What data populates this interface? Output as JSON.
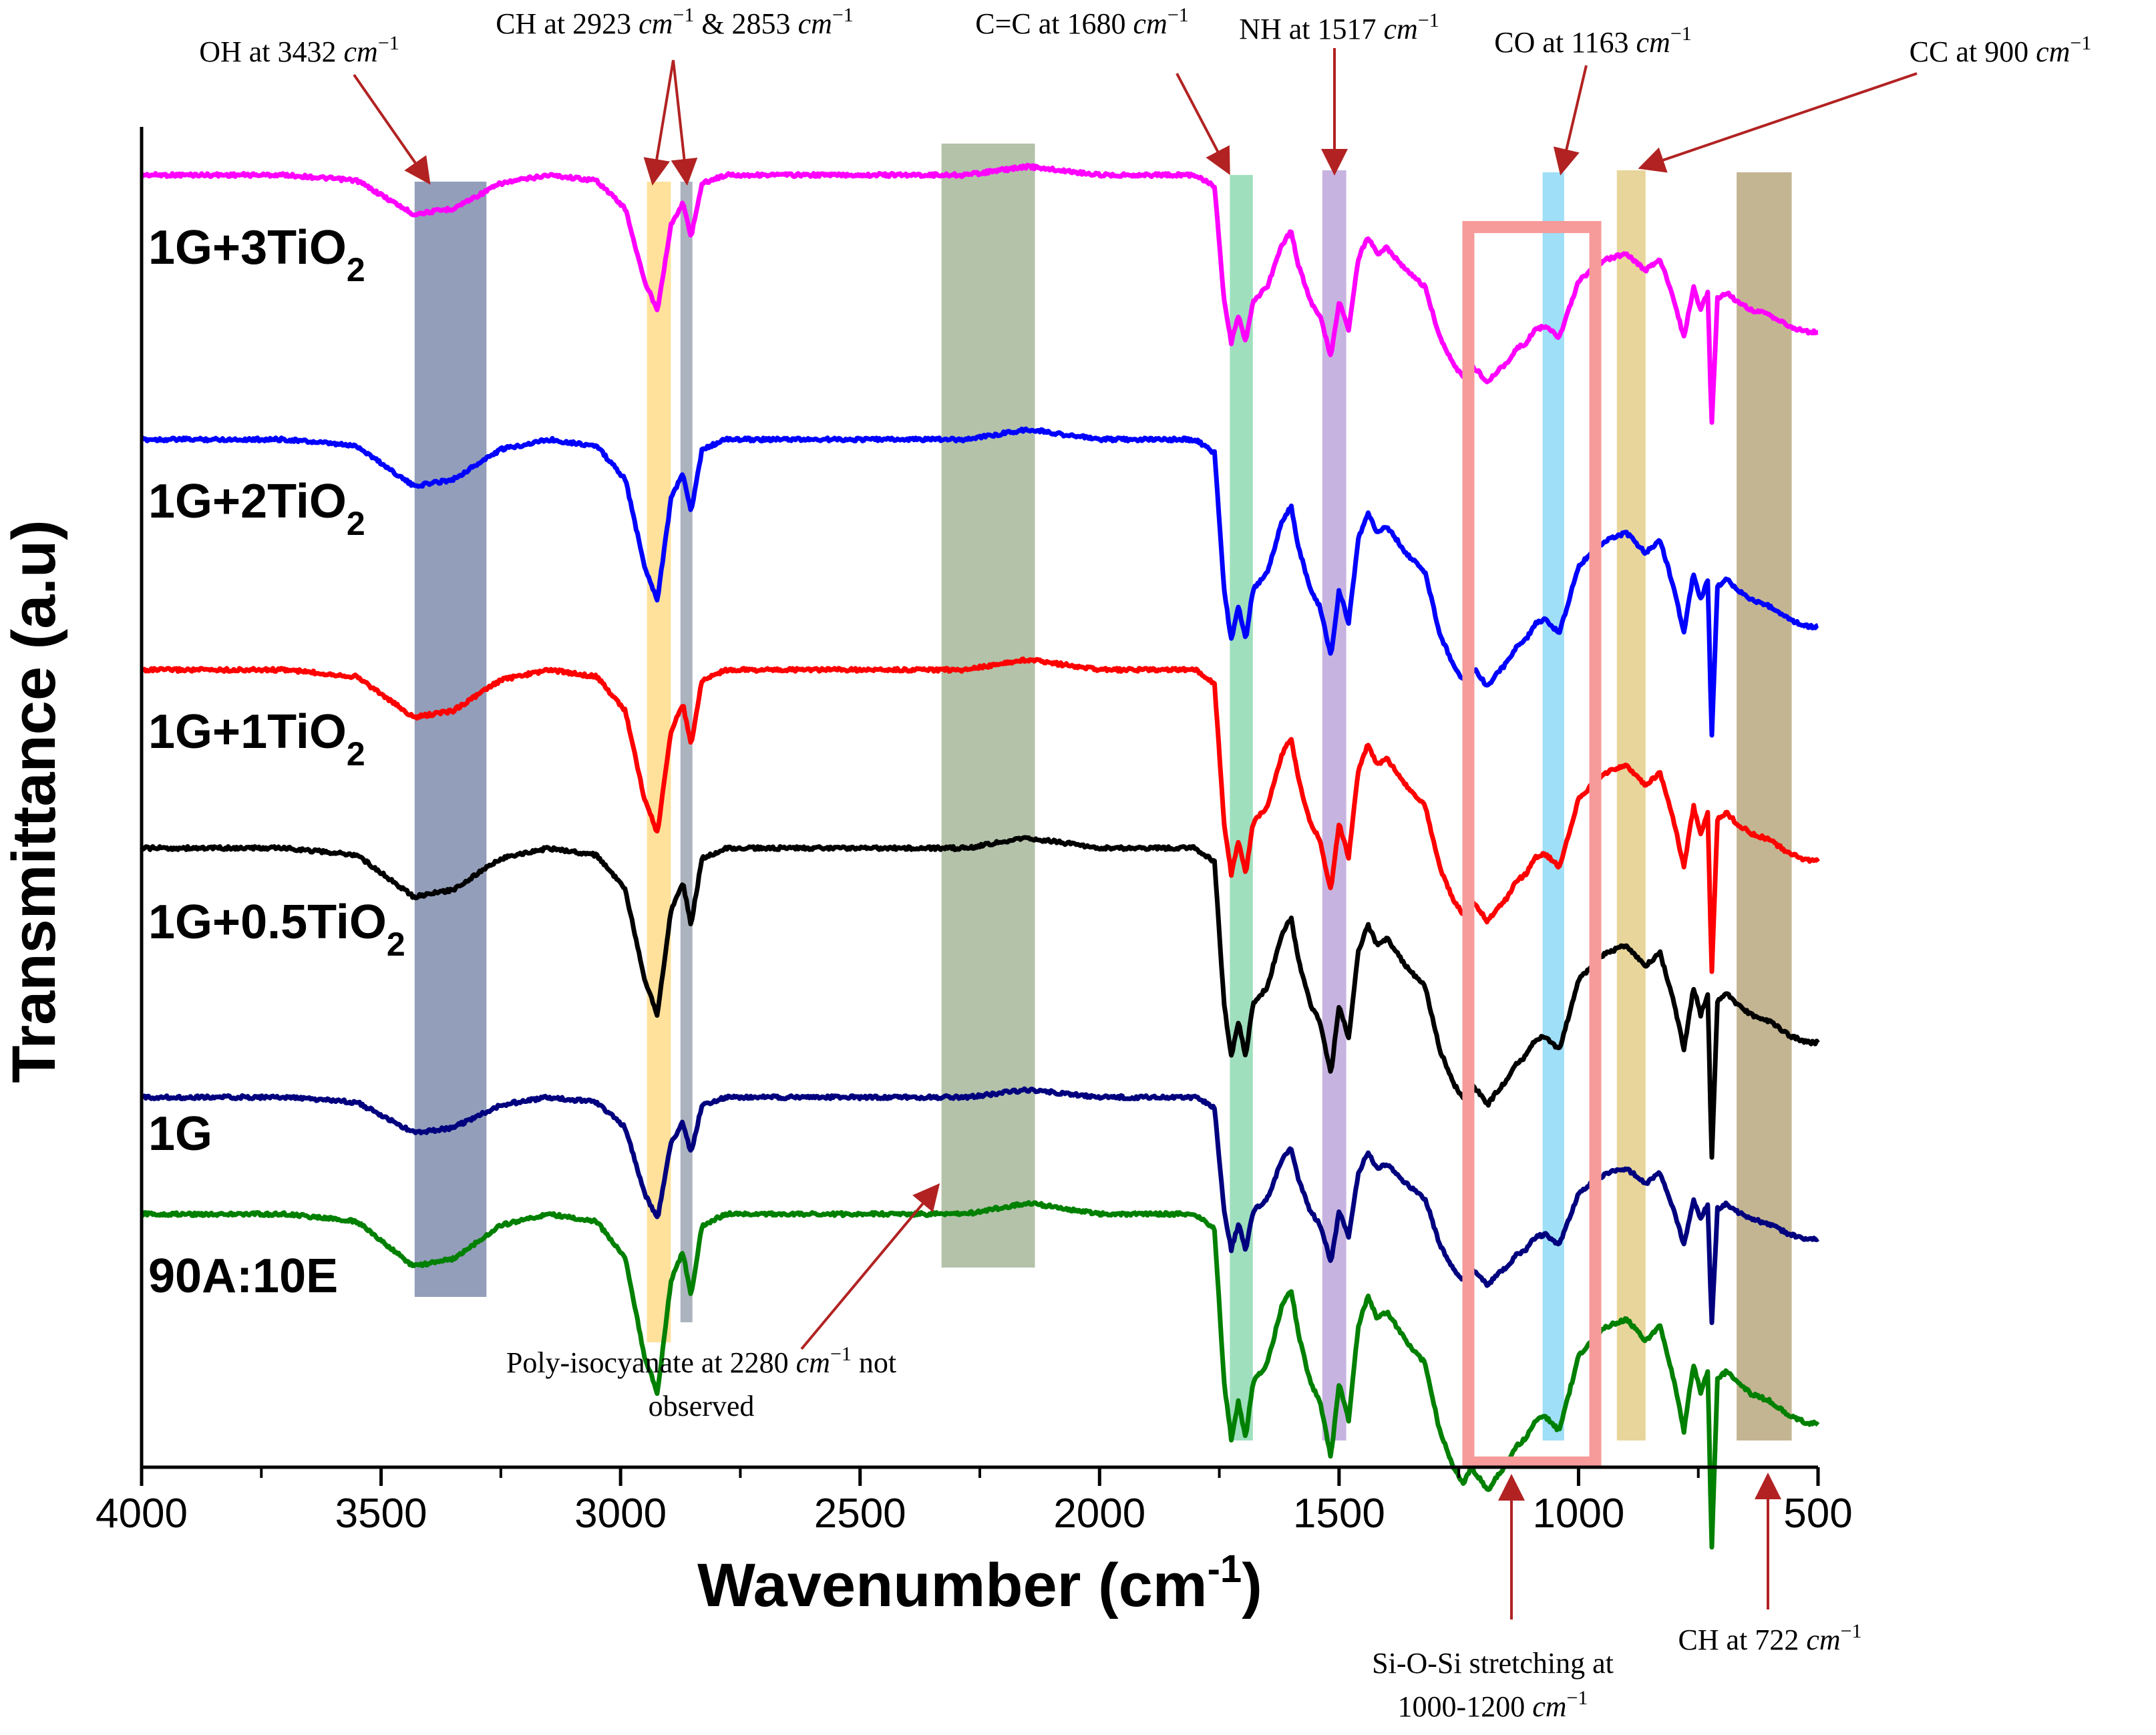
{
  "chart_data": {
    "type": "line",
    "title": "",
    "xlabel_main": "Wavenumber (cm",
    "xlabel_sup": "-1",
    "xlabel_close": ")",
    "ylabel": "Transmittance (a.u)",
    "x_range": [
      4000,
      500
    ],
    "x_ticks": [
      4000,
      3500,
      3000,
      2500,
      2000,
      1500,
      1000,
      500
    ],
    "x_tick_labels": [
      "4000",
      "3500",
      "3000",
      "2500",
      "2000",
      "1500",
      "1000",
      "500"
    ],
    "y_axis_ticks_shown": false,
    "series": [
      {
        "name": "1G+3TiO2",
        "label_main": "1G+3TiO",
        "label_sub": "2",
        "color": "#ff00ff",
        "offset": 5,
        "sample": "3ti"
      },
      {
        "name": "1G+2TiO2",
        "label_main": "1G+2TiO",
        "label_sub": "2",
        "color": "#0000ff",
        "offset": 4,
        "sample": "2ti"
      },
      {
        "name": "1G+1TiO2",
        "label_main": "1G+1TiO",
        "label_sub": "2",
        "color": "#ff0000",
        "offset": 3,
        "sample": "1ti"
      },
      {
        "name": "1G+0.5TiO2",
        "label_main": "1G+0.5TiO",
        "label_sub": "2",
        "color": "#000000",
        "offset": 2,
        "sample": "05ti"
      },
      {
        "name": "1G",
        "label_main": "1G",
        "label_sub": "",
        "color": "#00007f",
        "offset": 1,
        "sample": "1g"
      },
      {
        "name": "90A:10E",
        "label_main": "90A:10E",
        "label_sub": "",
        "color": "#008000",
        "offset": 0,
        "sample": "ae"
      }
    ],
    "spectrum_shape": {
      "points_wavenumber": [
        4000,
        3700,
        3550,
        3432,
        3350,
        3250,
        3150,
        3050,
        2990,
        2950,
        2923,
        2895,
        2870,
        2853,
        2830,
        2780,
        2500,
        2280,
        2150,
        2000,
        1900,
        1800,
        1760,
        1740,
        1725,
        1710,
        1695,
        1680,
        1650,
        1620,
        1600,
        1585,
        1560,
        1540,
        1517,
        1500,
        1480,
        1460,
        1440,
        1420,
        1400,
        1360,
        1320,
        1290,
        1260,
        1240,
        1225,
        1210,
        1190,
        1170,
        1150,
        1130,
        1110,
        1090,
        1070,
        1040,
        1000,
        960,
        940,
        900,
        860,
        830,
        800,
        780,
        760,
        745,
        730,
        722,
        710,
        690,
        670,
        640,
        600,
        560,
        520,
        500
      ],
      "relative_transmittance": [
        1.0,
        1.0,
        0.98,
        0.86,
        0.88,
        0.97,
        1.0,
        0.98,
        0.88,
        0.62,
        0.52,
        0.82,
        0.9,
        0.78,
        0.97,
        1.0,
        1.0,
        1.0,
        1.03,
        1.0,
        1.0,
        1.0,
        0.96,
        0.55,
        0.4,
        0.5,
        0.4,
        0.55,
        0.6,
        0.75,
        0.8,
        0.68,
        0.55,
        0.5,
        0.35,
        0.55,
        0.45,
        0.7,
        0.78,
        0.72,
        0.74,
        0.66,
        0.6,
        0.42,
        0.32,
        0.28,
        0.32,
        0.3,
        0.26,
        0.3,
        0.33,
        0.38,
        0.4,
        0.45,
        0.46,
        0.42,
        0.62,
        0.68,
        0.7,
        0.72,
        0.66,
        0.7,
        0.55,
        0.42,
        0.6,
        0.52,
        0.58,
        0.1,
        0.56,
        0.58,
        0.55,
        0.52,
        0.5,
        0.46,
        0.44,
        0.44
      ]
    },
    "highlight_bands": [
      {
        "name": "OH band",
        "x_range": [
          3430,
          3280
        ],
        "color": "#6f7ea3"
      },
      {
        "name": "CH 2923 band",
        "x_range": [
          2945,
          2895
        ],
        "color": "#ffd77a"
      },
      {
        "name": "CH 2853 band",
        "x_range": [
          2875,
          2850
        ],
        "color": "#8f9aaa"
      },
      {
        "name": "Poly-isocyanate band",
        "x_range": [
          2330,
          2135
        ],
        "color": "#9aae8c"
      },
      {
        "name": "C=C band",
        "x_range": [
          1728,
          1680
        ],
        "color": "#7fd4a8"
      },
      {
        "name": "NH band",
        "x_range": [
          1535,
          1485
        ],
        "color": "#b49ad6"
      },
      {
        "name": "CO band",
        "x_range": [
          1075,
          1030
        ],
        "color": "#7fd4f4"
      },
      {
        "name": "CC band",
        "x_range": [
          920,
          860
        ],
        "color": "#e0c77a"
      },
      {
        "name": "CH 722 band",
        "x_range": [
          670,
          555
        ],
        "color": "#b09c6e"
      }
    ],
    "si_o_si_box": {
      "x_range": [
        1230,
        965
      ],
      "color": "#f79a9a"
    },
    "annotations": [
      {
        "id": "oh",
        "text": "OH at 3432 ",
        "unit": "cm",
        "sup": "−1",
        "tail": ""
      },
      {
        "id": "ch2923",
        "text": "CH at 2923 ",
        "unit": "cm",
        "sup": "−1",
        "tail": " & 2853 ",
        "unit2": "cm",
        "sup2": "−1"
      },
      {
        "id": "cc1680",
        "text": "C=C at 1680 ",
        "unit": "cm",
        "sup": "−1",
        "tail": ""
      },
      {
        "id": "nh",
        "text": "NH at 1517 ",
        "unit": "cm",
        "sup": "−1",
        "tail": ""
      },
      {
        "id": "co",
        "text": "CO at 1163 ",
        "unit": "cm",
        "sup": "−1",
        "tail": ""
      },
      {
        "id": "cc900",
        "text": "CC at 900 ",
        "unit": "cm",
        "sup": "−1",
        "tail": ""
      },
      {
        "id": "poly1",
        "text": "Poly-isocyanate at 2280 ",
        "unit": "cm",
        "sup": "−1",
        "tail": " not"
      },
      {
        "id": "poly2",
        "text": "observed",
        "unit": "",
        "sup": "",
        "tail": ""
      },
      {
        "id": "si1",
        "text": "Si-O-Si stretching at",
        "unit": "",
        "sup": "",
        "tail": ""
      },
      {
        "id": "si2",
        "text": "1000-1200 ",
        "unit": "cm",
        "sup": "−1",
        "tail": ""
      },
      {
        "id": "ch722",
        "text": "CH at 722 ",
        "unit": "cm",
        "sup": "−1",
        "tail": ""
      }
    ]
  }
}
